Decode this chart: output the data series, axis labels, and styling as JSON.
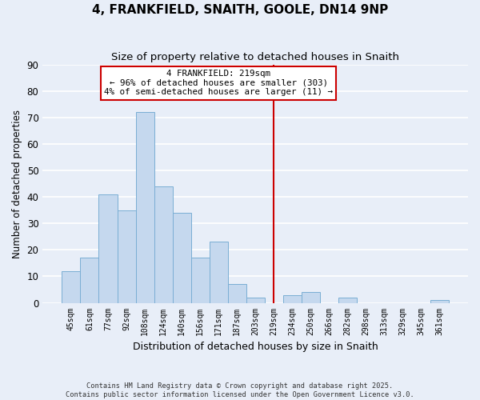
{
  "title": "4, FRANKFIELD, SNAITH, GOOLE, DN14 9NP",
  "subtitle": "Size of property relative to detached houses in Snaith",
  "xlabel": "Distribution of detached houses by size in Snaith",
  "ylabel": "Number of detached properties",
  "categories": [
    "45sqm",
    "61sqm",
    "77sqm",
    "92sqm",
    "108sqm",
    "124sqm",
    "140sqm",
    "156sqm",
    "171sqm",
    "187sqm",
    "203sqm",
    "219sqm",
    "234sqm",
    "250sqm",
    "266sqm",
    "282sqm",
    "298sqm",
    "313sqm",
    "329sqm",
    "345sqm",
    "361sqm"
  ],
  "values": [
    12,
    17,
    41,
    35,
    72,
    44,
    34,
    17,
    23,
    7,
    2,
    0,
    3,
    4,
    0,
    2,
    0,
    0,
    0,
    0,
    1
  ],
  "bar_color": "#c5d8ee",
  "bar_edge_color": "#7aaed4",
  "vline_index": 11,
  "vline_color": "#cc0000",
  "annotation_line1": "4 FRANKFIELD: 219sqm",
  "annotation_line2": "← 96% of detached houses are smaller (303)",
  "annotation_line3": "4% of semi-detached houses are larger (11) →",
  "annotation_box_color": "#cc0000",
  "ylim": [
    0,
    90
  ],
  "yticks": [
    0,
    10,
    20,
    30,
    40,
    50,
    60,
    70,
    80,
    90
  ],
  "background_color": "#e8eef8",
  "grid_color": "#ffffff",
  "footer_line1": "Contains HM Land Registry data © Crown copyright and database right 2025.",
  "footer_line2": "Contains public sector information licensed under the Open Government Licence v3.0."
}
